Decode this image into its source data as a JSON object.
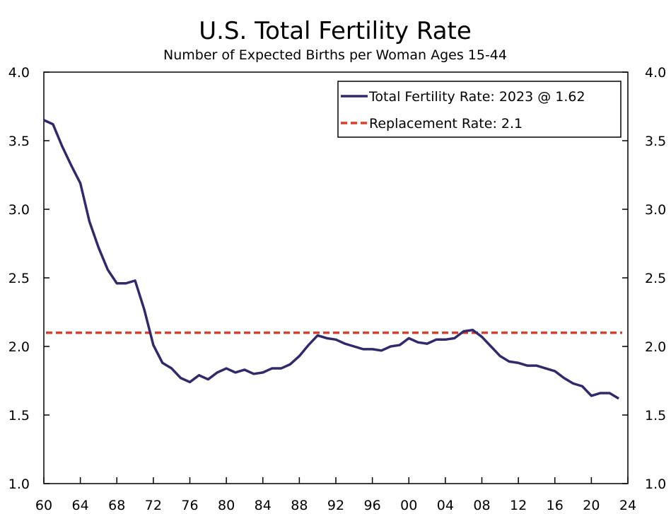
{
  "chart_data": {
    "type": "line",
    "title": "U.S. Total Fertility Rate",
    "subtitle": "Number of Expected Births per Woman Ages 15-44",
    "xlabel": "",
    "ylabel": "",
    "x_tick_labels": [
      "60",
      "64",
      "68",
      "72",
      "76",
      "80",
      "84",
      "88",
      "92",
      "96",
      "00",
      "04",
      "08",
      "12",
      "16",
      "20",
      "24"
    ],
    "x_tick_years": [
      1960,
      1964,
      1968,
      1972,
      1976,
      1980,
      1984,
      1988,
      1992,
      1996,
      2000,
      2004,
      2008,
      2012,
      2016,
      2020,
      2024
    ],
    "y_tick_labels": [
      "1.0",
      "1.5",
      "2.0",
      "2.5",
      "3.0",
      "3.5",
      "4.0"
    ],
    "y_tick_values": [
      1.0,
      1.5,
      2.0,
      2.5,
      3.0,
      3.5,
      4.0
    ],
    "xlim": [
      1960,
      2024
    ],
    "ylim": [
      1.0,
      4.0
    ],
    "legend_position": "top-right",
    "series": [
      {
        "name": "Total Fertility Rate: 2023 @ 1.62",
        "color": "#312a6a",
        "style": "solid",
        "x": [
          1960,
          1961,
          1962,
          1963,
          1964,
          1965,
          1966,
          1967,
          1968,
          1969,
          1970,
          1971,
          1972,
          1973,
          1974,
          1975,
          1976,
          1977,
          1978,
          1979,
          1980,
          1981,
          1982,
          1983,
          1984,
          1985,
          1986,
          1987,
          1988,
          1989,
          1990,
          1991,
          1992,
          1993,
          1994,
          1995,
          1996,
          1997,
          1998,
          1999,
          2000,
          2001,
          2002,
          2003,
          2004,
          2005,
          2006,
          2007,
          2008,
          2009,
          2010,
          2011,
          2012,
          2013,
          2014,
          2015,
          2016,
          2017,
          2018,
          2019,
          2020,
          2021,
          2022,
          2023
        ],
        "values": [
          3.65,
          3.62,
          3.46,
          3.32,
          3.19,
          2.91,
          2.72,
          2.56,
          2.46,
          2.46,
          2.48,
          2.27,
          2.01,
          1.88,
          1.84,
          1.77,
          1.74,
          1.79,
          1.76,
          1.81,
          1.84,
          1.81,
          1.83,
          1.8,
          1.81,
          1.84,
          1.84,
          1.87,
          1.93,
          2.01,
          2.08,
          2.06,
          2.05,
          2.02,
          2.0,
          1.98,
          1.98,
          1.97,
          2.0,
          2.01,
          2.06,
          2.03,
          2.02,
          2.05,
          2.05,
          2.06,
          2.11,
          2.12,
          2.07,
          2.0,
          1.93,
          1.89,
          1.88,
          1.86,
          1.86,
          1.84,
          1.82,
          1.77,
          1.73,
          1.71,
          1.64,
          1.66,
          1.66,
          1.62
        ]
      },
      {
        "name": "Replacement Rate: 2.1",
        "color": "#d9402b",
        "style": "dashed",
        "x": [
          1960,
          2023
        ],
        "values": [
          2.1,
          2.1
        ]
      }
    ]
  }
}
